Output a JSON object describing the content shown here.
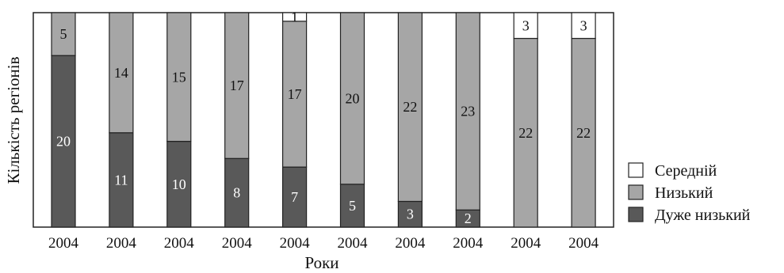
{
  "chart_data": {
    "type": "bar",
    "stacked": true,
    "orientation": "vertical",
    "categories": [
      "2004",
      "2004",
      "2004",
      "2004",
      "2004",
      "2004",
      "2004",
      "2004",
      "2004",
      "2004"
    ],
    "xlabel": "Роки",
    "ylabel": "Кількість регіонів",
    "ylim": [
      0,
      25
    ],
    "grid": false,
    "legend_position": "right",
    "series": [
      {
        "name": "Дуже низький",
        "color": "#595959",
        "values": [
          20,
          11,
          10,
          8,
          7,
          5,
          3,
          2,
          0,
          0
        ]
      },
      {
        "name": "Низький",
        "color": "#a6a6a6",
        "values": [
          5,
          14,
          15,
          17,
          17,
          20,
          22,
          23,
          22,
          22
        ]
      },
      {
        "name": "Середній",
        "color": "#ffffff",
        "values": [
          0,
          0,
          0,
          0,
          1,
          0,
          0,
          0,
          3,
          3
        ]
      }
    ],
    "legend_order": [
      "Середній",
      "Низький",
      "Дуже низький"
    ]
  }
}
